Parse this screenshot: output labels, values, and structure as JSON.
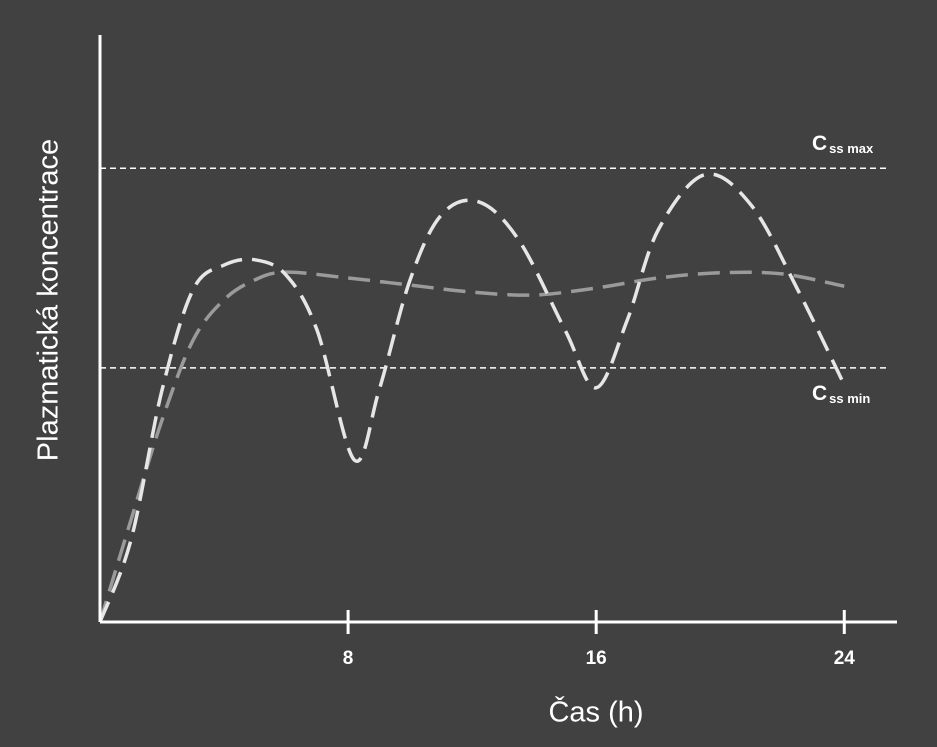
{
  "chart_data": {
    "type": "line",
    "x_label": "Čas (h)",
    "y_label": "Plazmatická koncentrace",
    "xlim": [
      0,
      25.7
    ],
    "xticks": [
      8,
      16,
      24
    ],
    "ylim": [
      0,
      100
    ],
    "series": [
      {
        "color": "#e6e6e6",
        "x": [
          0,
          1,
          2,
          3,
          4,
          5,
          6,
          7,
          8.2,
          9,
          10,
          11,
          12.2,
          13.5,
          15,
          16,
          17,
          18,
          19.5,
          21,
          22.5,
          24
        ],
        "values": [
          0,
          14.0,
          39.5,
          56.6,
          60.8,
          61.7,
          59.1,
          49.7,
          27.6,
          39.5,
          58.3,
          69.3,
          71.6,
          65.1,
          49.7,
          39.9,
          51.4,
          66.8,
          76.2,
          71.0,
          56.6,
          40.4
        ]
      },
      {
        "color": "#9a9a9a",
        "x": [
          0,
          1,
          2,
          3,
          4,
          5,
          6,
          8,
          10,
          12,
          14,
          16,
          18,
          20,
          22,
          24
        ],
        "values": [
          0,
          17.4,
          34.4,
          48.0,
          54.9,
          58.3,
          59.6,
          58.6,
          57.4,
          56.2,
          55.7,
          56.9,
          58.6,
          59.5,
          59.3,
          57.2
        ]
      }
    ],
    "reference_lines": [
      {
        "value": 77.3,
        "label": "C",
        "sub": "ss max"
      },
      {
        "value": 43.3,
        "label": "C",
        "sub": "ss min"
      }
    ]
  }
}
